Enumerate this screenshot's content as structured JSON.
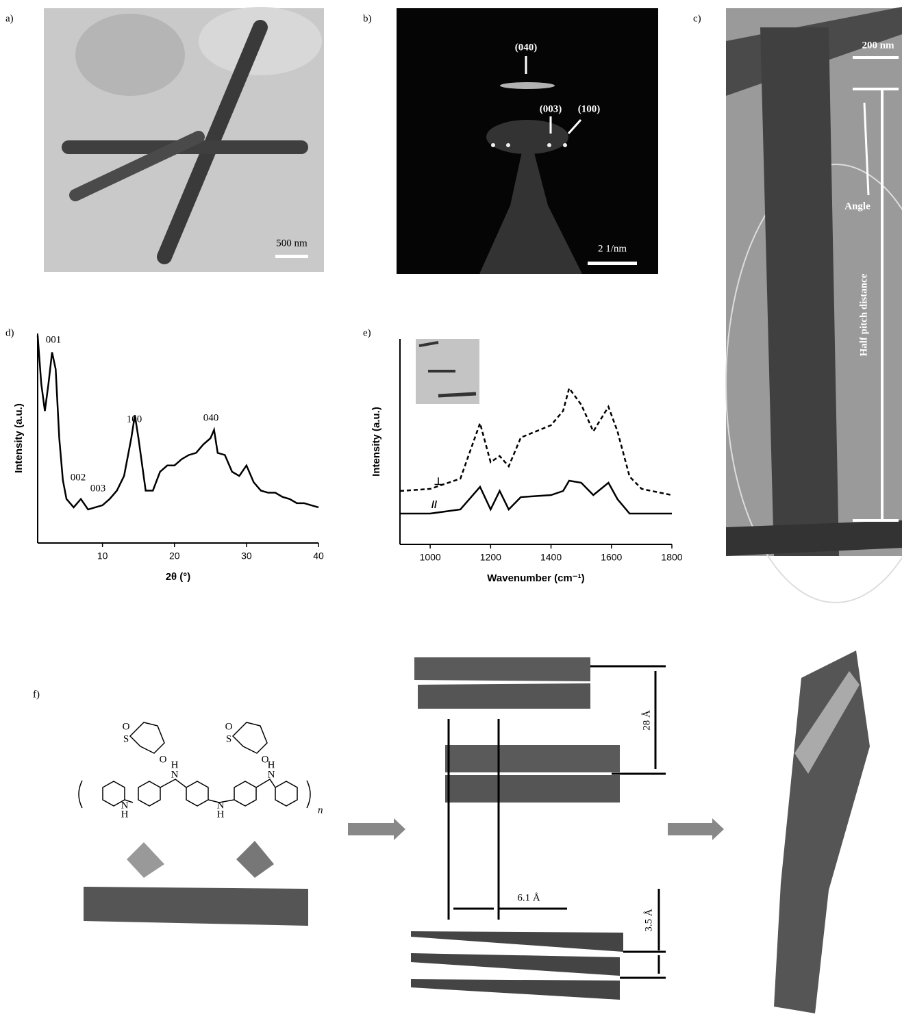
{
  "panels": {
    "a": {
      "label": "a)",
      "scale_bar": "500 nm"
    },
    "b": {
      "label": "b)",
      "annotations": [
        "(040)",
        "(003)",
        "(100)"
      ],
      "scale_bar": "2 1/nm"
    },
    "c": {
      "label": "c)",
      "scale_bar": "200 nm",
      "annotations": [
        "Angle",
        "Half pitch distance"
      ]
    },
    "f": {
      "label": "f)",
      "dimensions": [
        "28 Å",
        "6.1 Å",
        "3.5 Å"
      ],
      "structure_labels": [
        "S",
        "S",
        "O",
        "O",
        "O",
        "O",
        "H",
        "N",
        "H",
        "N",
        "N",
        "H",
        "N",
        "H",
        "n"
      ]
    }
  },
  "chart_data": [
    {
      "type": "line",
      "panel_label": "d)",
      "x_label": "2θ (°)",
      "y_label": "Intensity (a.u.)",
      "annotations": [
        "001",
        "002",
        "003",
        "100",
        "040"
      ],
      "x": [
        1,
        1.5,
        2,
        2.5,
        3,
        3.5,
        4,
        4.5,
        5,
        6,
        7,
        8,
        9,
        10,
        11,
        12,
        13,
        14,
        14.5,
        15,
        16,
        17,
        18,
        19,
        20,
        21,
        22,
        23,
        24,
        25,
        25.5,
        26,
        27,
        28,
        29,
        30,
        31,
        32,
        33,
        34,
        35,
        36,
        37,
        38,
        39,
        40
      ],
      "values": [
        99,
        76,
        63,
        76,
        91,
        83,
        50,
        30,
        21,
        17,
        21,
        16,
        17,
        18,
        21,
        25,
        32,
        50,
        61,
        50,
        25,
        25,
        34,
        37,
        37,
        40,
        42,
        43,
        47,
        50,
        54,
        43,
        42,
        34,
        32,
        37,
        29,
        25,
        24,
        24,
        22,
        21,
        19,
        19,
        18,
        17
      ],
      "color": "#000000",
      "xlim": [
        1,
        40
      ],
      "ylim": [
        0,
        100
      ],
      "xticks": [
        10,
        20,
        30,
        40
      ]
    },
    {
      "type": "line",
      "panel_label": "e)",
      "x_label": "Wavenumber (cm⁻¹)",
      "y_label": "Intensity (a.u.)",
      "x": [
        900,
        1000,
        1100,
        1165,
        1200,
        1230,
        1260,
        1300,
        1400,
        1440,
        1460,
        1500,
        1540,
        1590,
        1620,
        1660,
        1700,
        1800
      ],
      "series": [
        {
          "name": "⊥",
          "color": "#000000",
          "style": "dashed",
          "values": [
            26,
            27,
            32,
            59,
            40,
            43,
            38,
            52,
            58,
            65,
            76,
            68,
            55,
            67,
            55,
            33,
            27,
            24
          ]
        },
        {
          "name": "//",
          "color": "#000000",
          "style": "solid",
          "values": [
            15,
            15,
            17,
            28,
            17,
            26,
            17,
            23,
            24,
            26,
            31,
            30,
            24,
            30,
            22,
            15,
            15,
            15
          ]
        }
      ],
      "xlim": [
        900,
        1800
      ],
      "ylim": [
        0,
        100
      ],
      "xticks": [
        1000,
        1200,
        1400,
        1600,
        1800
      ]
    }
  ]
}
